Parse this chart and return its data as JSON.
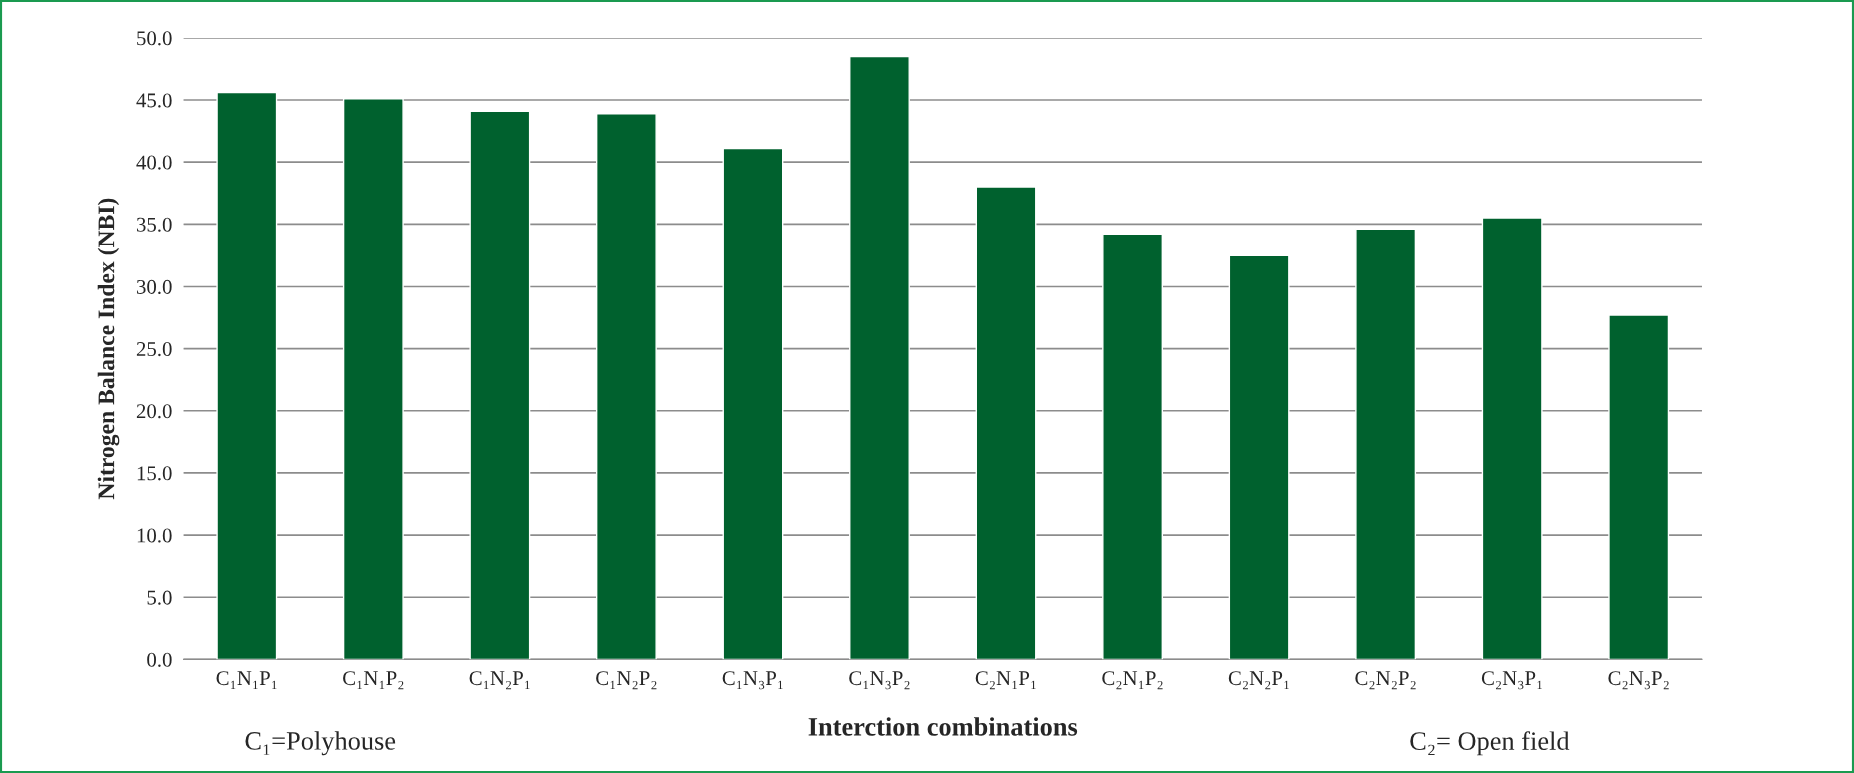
{
  "chart_data": {
    "type": "bar",
    "xlabel": "Interction combinations",
    "ylabel": "Nitrogen Balance Index (NBI)",
    "categories": [
      "C₁N₁P₁",
      "C₁N₁P₂",
      "C₁N₂P₁",
      "C₁N₂P₂",
      "C₁N₃P₁",
      "C₁N₃P₂",
      "C₂N₁P₁",
      "C₂N₁P₂",
      "C₂N₂P₁",
      "C₂N₂P₂",
      "C₂N₃P₁",
      "C₂N₃P₂"
    ],
    "values": [
      45.6,
      45.1,
      44.1,
      43.9,
      41.1,
      48.5,
      38.0,
      34.2,
      32.5,
      34.6,
      35.5,
      27.7
    ],
    "color": "#00612e",
    "ylim": [
      0,
      50
    ],
    "yticks": [
      {
        "value": 0,
        "label": "0.0"
      },
      {
        "value": 5,
        "label": "5.0"
      },
      {
        "value": 10,
        "label": "10.0"
      },
      {
        "value": 15,
        "label": "15.0"
      },
      {
        "value": 20,
        "label": "20.0"
      },
      {
        "value": 25,
        "label": "25.0"
      },
      {
        "value": 30,
        "label": "30.0"
      },
      {
        "value": 35,
        "label": "35.0"
      },
      {
        "value": 40,
        "label": "40.0"
      },
      {
        "value": 45,
        "label": "45.0"
      },
      {
        "value": 50,
        "label": "50.0"
      }
    ],
    "grid": "y",
    "annotations": [
      "C₁=Polyhouse",
      "C₂= Open field"
    ]
  }
}
